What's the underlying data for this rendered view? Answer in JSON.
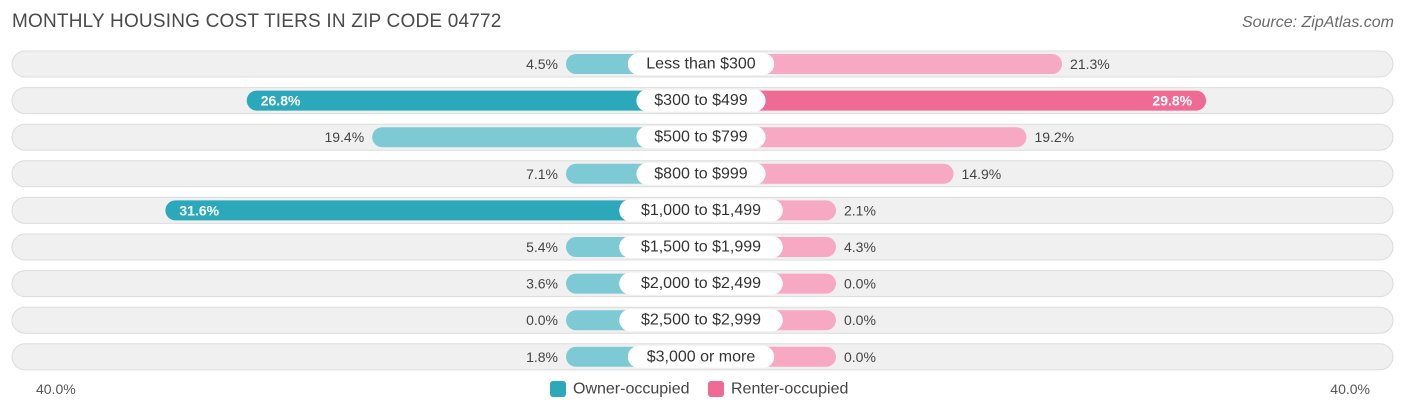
{
  "title": "MONTHLY HOUSING COST TIERS IN ZIP CODE 04772",
  "source": "Source: ZipAtlas.com",
  "chart_data": {
    "type": "bar",
    "orientation": "horizontal-diverging",
    "categories": [
      "Less than $300",
      "$300 to $499",
      "$500 to $799",
      "$800 to $999",
      "$1,000 to $1,499",
      "$1,500 to $1,999",
      "$2,000 to $2,499",
      "$2,500 to $2,999",
      "$3,000 or more"
    ],
    "series": [
      {
        "name": "Owner-occupied",
        "color": "#2ba9ba",
        "light_color": "#7ecad4",
        "side": "left",
        "values": [
          4.5,
          26.8,
          19.4,
          7.1,
          31.6,
          5.4,
          3.6,
          0.0,
          1.8
        ],
        "labels": [
          "4.5%",
          "26.8%",
          "19.4%",
          "7.1%",
          "31.6%",
          "5.4%",
          "3.6%",
          "0.0%",
          "1.8%"
        ]
      },
      {
        "name": "Renter-occupied",
        "color": "#f06a96",
        "light_color": "#f7a8c2",
        "side": "right",
        "values": [
          21.3,
          29.8,
          19.2,
          14.9,
          2.1,
          4.3,
          0.0,
          0.0,
          0.0
        ],
        "labels": [
          "21.3%",
          "29.8%",
          "19.2%",
          "14.9%",
          "2.1%",
          "4.3%",
          "0.0%",
          "0.0%",
          "0.0%"
        ]
      }
    ],
    "xlim": [
      -40,
      40
    ],
    "axis_labels": {
      "left": "40.0%",
      "right": "40.0%"
    },
    "legend_position": "bottom-center"
  }
}
